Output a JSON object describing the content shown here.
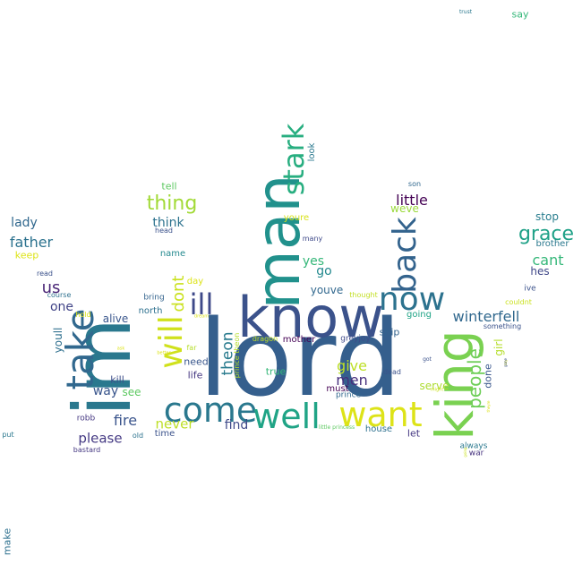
{
  "words": [
    {
      "text": "lord",
      "color": "#355f8d",
      "rot": 0
    },
    {
      "text": "im",
      "color": "#2a788e",
      "rot": -90
    },
    {
      "text": "know",
      "color": "#3b528b",
      "rot": 0
    },
    {
      "text": "man",
      "color": "#21918c",
      "rot": -90
    },
    {
      "text": "king",
      "color": "#7ad151",
      "rot": -90
    },
    {
      "text": "take",
      "color": "#31688e",
      "rot": -90
    },
    {
      "text": "come",
      "color": "#2a788e",
      "rot": 0
    },
    {
      "text": "well",
      "color": "#20a486",
      "rot": 0
    },
    {
      "text": "want",
      "color": "#dde318",
      "rot": 0
    },
    {
      "text": "now",
      "color": "#2c728e",
      "rot": 0
    },
    {
      "text": "back",
      "color": "#33638d",
      "rot": -90
    },
    {
      "text": "will",
      "color": "#d0e11c",
      "rot": -90
    },
    {
      "text": "stark",
      "color": "#28ae80",
      "rot": -90
    },
    {
      "text": "ill",
      "color": "#3e4989",
      "rot": 0
    },
    {
      "text": "thing",
      "color": "#a2da37",
      "rot": 0
    },
    {
      "text": "grace",
      "color": "#1fa187",
      "rot": 0
    },
    {
      "text": "people",
      "color": "#6ece58",
      "rot": -90
    },
    {
      "text": "winterfell",
      "color": "#31688e",
      "rot": 0
    },
    {
      "text": "us",
      "color": "#482475",
      "rot": 0
    },
    {
      "text": "little",
      "color": "#440154",
      "rot": 0
    },
    {
      "text": "father",
      "color": "#2c728e",
      "rot": 0
    },
    {
      "text": "cant",
      "color": "#35b779",
      "rot": 0
    },
    {
      "text": "dont",
      "color": "#cae11f",
      "rot": -90
    },
    {
      "text": "way",
      "color": "#39558c",
      "rot": 0
    },
    {
      "text": "fire",
      "color": "#3a548c",
      "rot": 0
    },
    {
      "text": "please",
      "color": "#443983",
      "rot": 0
    },
    {
      "text": "men",
      "color": "#472f7d",
      "rot": 0
    },
    {
      "text": "give",
      "color": "#bddf26",
      "rot": 0
    },
    {
      "text": "theon",
      "color": "#297b8e",
      "rot": -90
    },
    {
      "text": "never",
      "color": "#bddf26",
      "rot": 0
    },
    {
      "text": "find",
      "color": "#3e4989",
      "rot": 0
    },
    {
      "text": "lady",
      "color": "#31688e",
      "rot": 0
    },
    {
      "text": "think",
      "color": "#2c728e",
      "rot": 0
    },
    {
      "text": "yes",
      "color": "#35b779",
      "rot": 0
    },
    {
      "text": "go",
      "color": "#23898e",
      "rot": 0
    },
    {
      "text": "stop",
      "color": "#287d8e",
      "rot": 0
    },
    {
      "text": "one",
      "color": "#414487",
      "rot": 0
    },
    {
      "text": "alive",
      "color": "#39568c",
      "rot": 0
    },
    {
      "text": "youll",
      "color": "#2e6f8e",
      "rot": -90
    },
    {
      "text": "girl",
      "color": "#b5de2b",
      "rot": -90
    },
    {
      "text": "see",
      "color": "#5ec962",
      "rot": 0
    },
    {
      "text": "youve",
      "color": "#31688e",
      "rot": 0
    },
    {
      "text": "hes",
      "color": "#3f4788",
      "rot": 0
    },
    {
      "text": "serve",
      "color": "#addc30",
      "rot": 0
    },
    {
      "text": "done",
      "color": "#39568c",
      "rot": -90
    },
    {
      "text": "let",
      "color": "#453882",
      "rot": 0
    },
    {
      "text": "ship",
      "color": "#33638d",
      "rot": 0
    },
    {
      "text": "weve",
      "color": "#9bd93c",
      "rot": 0
    },
    {
      "text": "kill",
      "color": "#3d4e8a",
      "rot": 0
    },
    {
      "text": "life",
      "color": "#453781",
      "rot": 0
    },
    {
      "text": "need",
      "color": "#39568c",
      "rot": 0
    },
    {
      "text": "true",
      "color": "#35b779",
      "rot": 0
    },
    {
      "text": "must",
      "color": "#440154",
      "rot": 0
    },
    {
      "text": "house",
      "color": "#2d708e",
      "rot": 0
    },
    {
      "text": "going",
      "color": "#20a486",
      "rot": 0
    },
    {
      "text": "keep",
      "color": "#dde318",
      "rot": 0
    },
    {
      "text": "tell",
      "color": "#5ec962",
      "rot": 0
    },
    {
      "text": "name",
      "color": "#23898e",
      "rot": 0
    },
    {
      "text": "look",
      "color": "#2a788e",
      "rot": -90
    },
    {
      "text": "ive",
      "color": "#3b528b",
      "rot": 0
    },
    {
      "text": "brother",
      "color": "#2a788e",
      "rot": 0
    },
    {
      "text": "north",
      "color": "#2d708e",
      "rot": 0
    },
    {
      "text": "mother",
      "color": "#440154",
      "rot": 0
    },
    {
      "text": "greyjoy",
      "color": "#3e4989",
      "rot": 0
    },
    {
      "text": "time",
      "color": "#3b528b",
      "rot": 0
    },
    {
      "text": "always",
      "color": "#2a788e",
      "rot": 0
    },
    {
      "text": "war",
      "color": "#46327e",
      "rot": 0
    },
    {
      "text": "say",
      "color": "#35b779",
      "rot": 0
    },
    {
      "text": "robb",
      "color": "#453882",
      "rot": 0
    },
    {
      "text": "bring",
      "color": "#33638d",
      "rot": 0
    },
    {
      "text": "day",
      "color": "#dde318",
      "rot": 0
    },
    {
      "text": "prince",
      "color": "#31688e",
      "rot": 0
    },
    {
      "text": "thought",
      "color": "#c2df23",
      "rot": 0
    },
    {
      "text": "dead",
      "color": "#3b528b",
      "rot": 0
    },
    {
      "text": "son",
      "color": "#31688e",
      "rot": 0
    },
    {
      "text": "youre",
      "color": "#d8e219",
      "rot": 0
    },
    {
      "text": "head",
      "color": "#3b528b",
      "rot": 0
    },
    {
      "text": "many",
      "color": "#3e4989",
      "rot": 0
    },
    {
      "text": "read",
      "color": "#3b528b",
      "rot": 0
    },
    {
      "text": "course",
      "color": "#2d708e",
      "rot": 0
    },
    {
      "text": "hold",
      "color": "#dde318",
      "rot": 0
    },
    {
      "text": "far",
      "color": "#b5de2b",
      "rot": 0
    },
    {
      "text": "dragon",
      "color": "#c2df23",
      "rot": 0
    },
    {
      "text": "prince theon",
      "color": "#b5de2b",
      "rot": -90
    },
    {
      "text": "something",
      "color": "#3b528b",
      "rot": 0
    },
    {
      "text": "couldnt",
      "color": "#cae11f",
      "rot": 0
    },
    {
      "text": "old",
      "color": "#2c728e",
      "rot": 0
    },
    {
      "text": "bastard",
      "color": "#453882",
      "rot": 0
    },
    {
      "text": "put",
      "color": "#2a788e",
      "rot": 0
    },
    {
      "text": "make",
      "color": "#2d708e",
      "rot": -90
    },
    {
      "text": "trust",
      "color": "#2a788e",
      "rot": 0
    },
    {
      "text": "little princess",
      "color": "#5ec962",
      "rot": 0
    },
    {
      "text": "got",
      "color": "#3b528b",
      "rot": 0
    },
    {
      "text": "might",
      "color": "#cae11f",
      "rot": 0
    },
    {
      "text": "better",
      "color": "#dde318",
      "rot": 0
    },
    {
      "text": "dream",
      "color": "#dde318",
      "rot": 0
    },
    {
      "text": "ask",
      "color": "#dde318",
      "rot": 0
    },
    {
      "text": "going",
      "color": "#cae11f",
      "rot": -90
    },
    {
      "text": "theyre",
      "color": "#dde318",
      "rot": -90
    },
    {
      "text": "say",
      "color": "#dde318",
      "rot": -90
    },
    {
      "text": "gone",
      "color": "#3b528b",
      "rot": -90
    }
  ]
}
